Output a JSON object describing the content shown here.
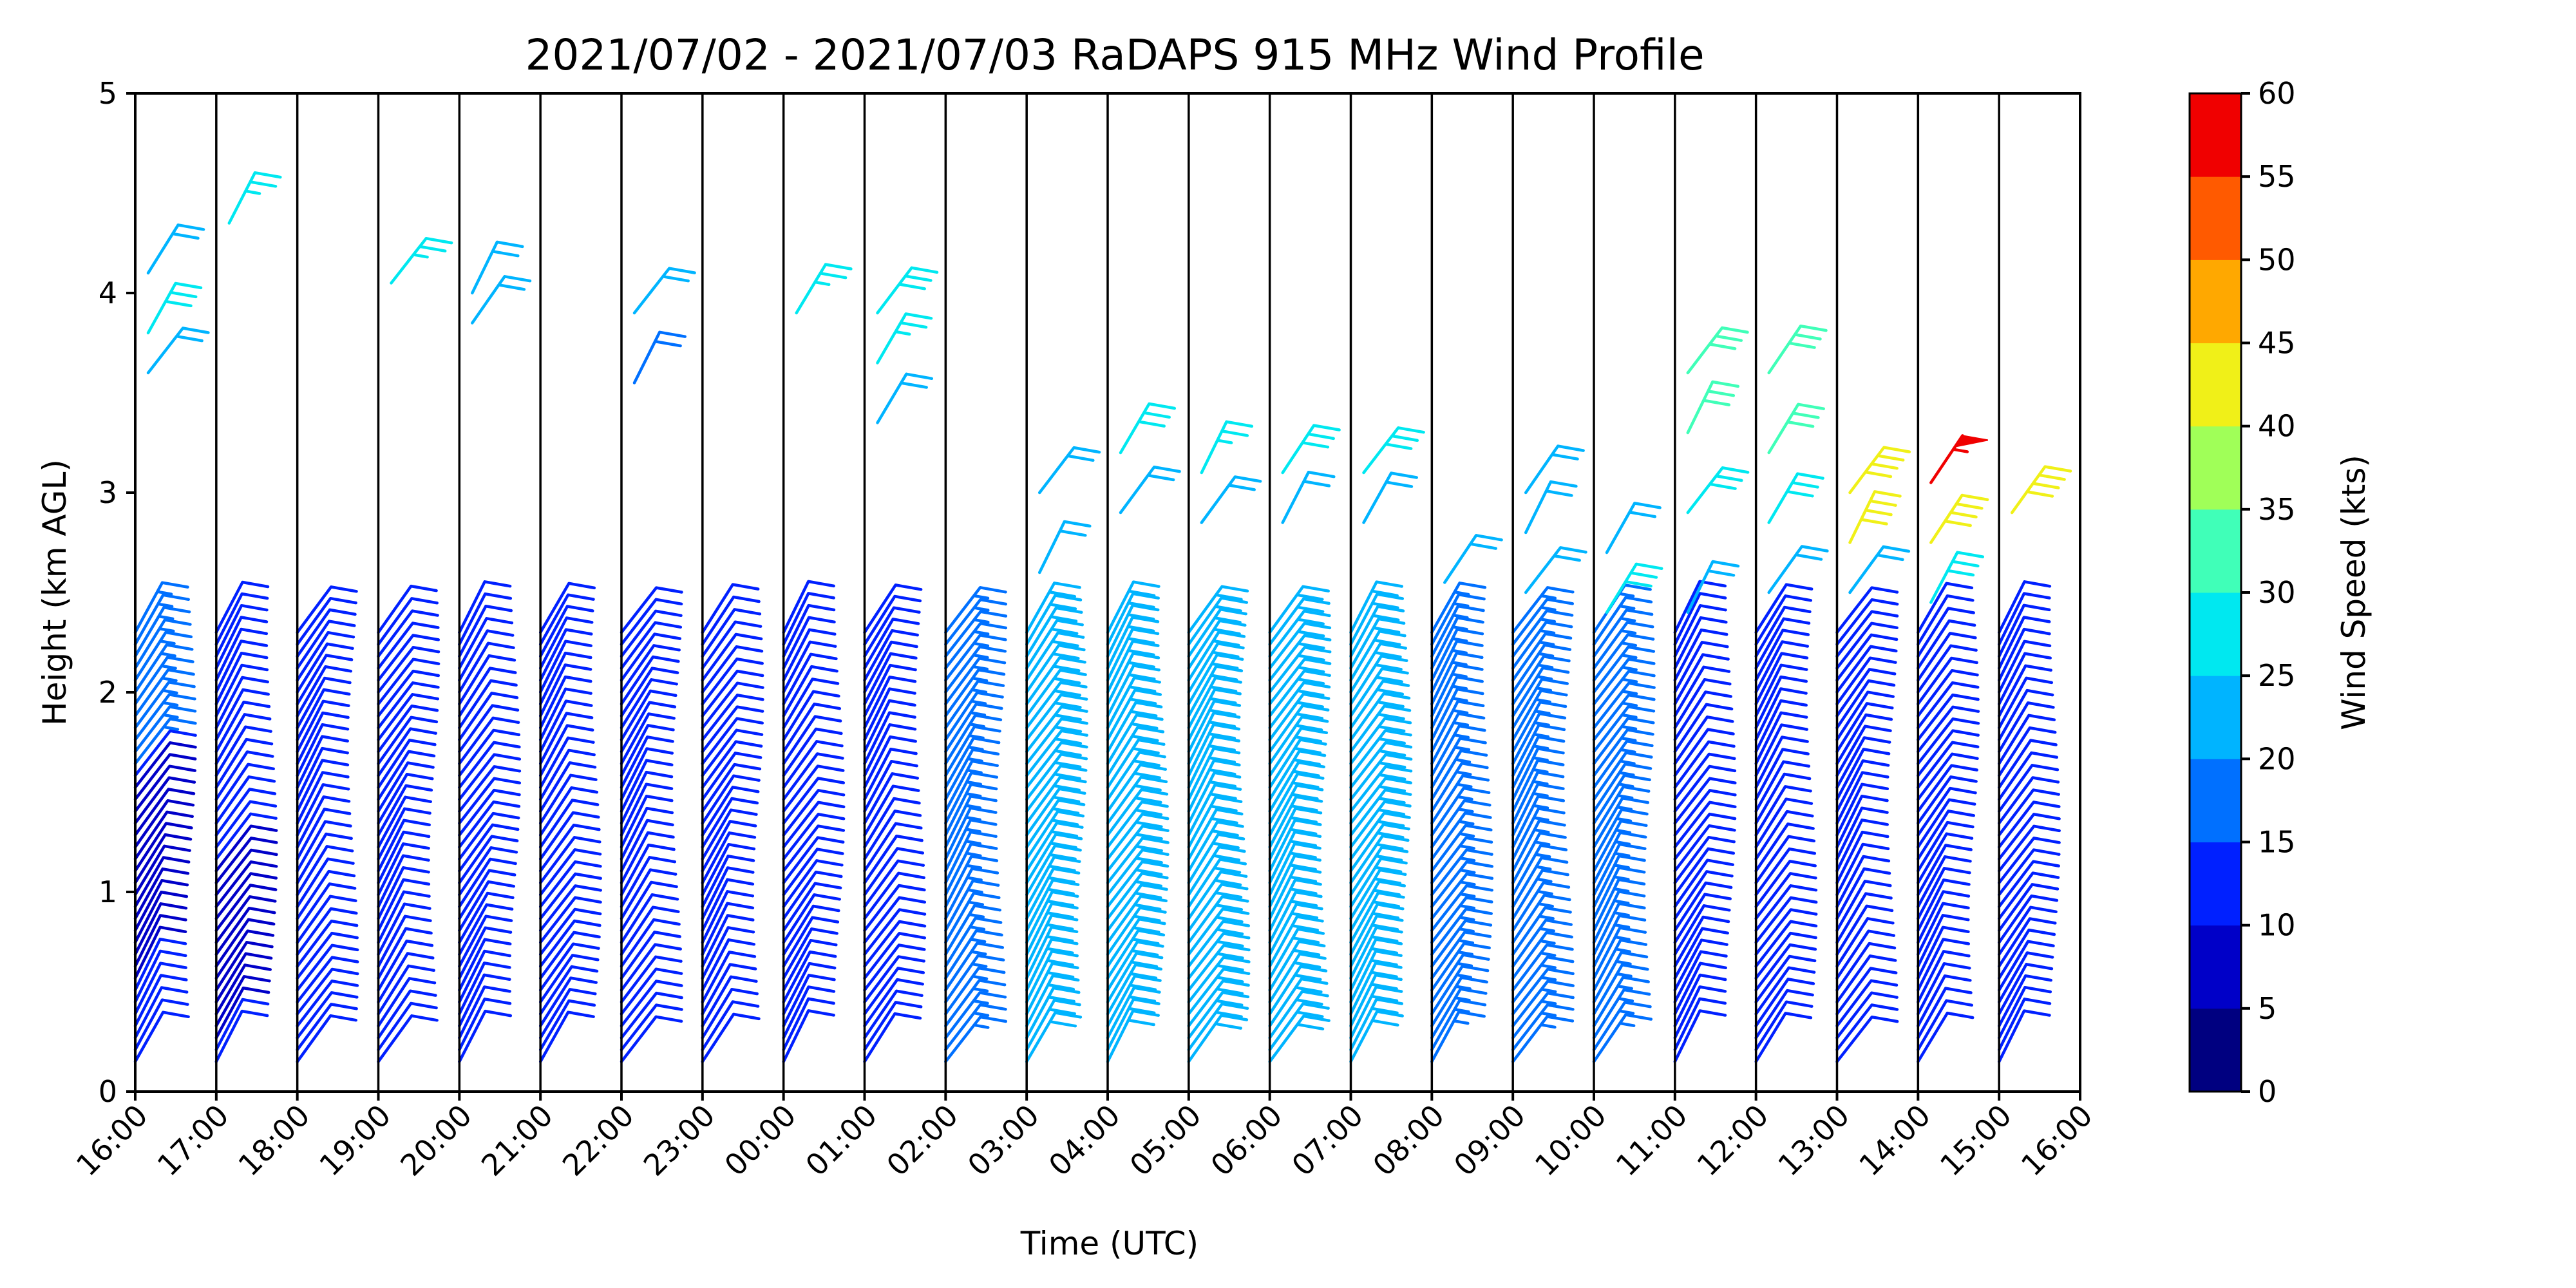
{
  "chart_data": {
    "type": "wind_barb_profile",
    "title": "2021/07/02 - 2021/07/03 RaDAPS 915 MHz Wind Profile",
    "xlabel": "Time (UTC)",
    "ylabel": "Height (km AGL)",
    "ylim": [
      0,
      5
    ],
    "yticks": [
      "0",
      "1",
      "2",
      "3",
      "4",
      "5"
    ],
    "xticks": [
      "16:00",
      "17:00",
      "18:00",
      "19:00",
      "20:00",
      "21:00",
      "22:00",
      "23:00",
      "00:00",
      "01:00",
      "02:00",
      "03:00",
      "04:00",
      "05:00",
      "06:00",
      "07:00",
      "08:00",
      "09:00",
      "10:00",
      "11:00",
      "12:00",
      "13:00",
      "14:00",
      "15:00",
      "16:00"
    ],
    "grid": "vertical lines at each hour",
    "colorbar": {
      "label": "Wind Speed (kts)",
      "ticks": [
        "0",
        "5",
        "10",
        "15",
        "20",
        "25",
        "30",
        "35",
        "40",
        "45",
        "50",
        "55",
        "60"
      ],
      "colors": [
        "#000080",
        "#0000c8",
        "#0020ff",
        "#0070ff",
        "#00b4ff",
        "#00e8f0",
        "#40ffb8",
        "#a0ff58",
        "#f0f018",
        "#ffa800",
        "#ff5a00",
        "#f00000",
        "#800000"
      ]
    },
    "profiles": [
      {
        "time": "16:00",
        "speeds": [
          10,
          10,
          10,
          10,
          10,
          10,
          10,
          8,
          8,
          8,
          8,
          8,
          8,
          8,
          8,
          8,
          8,
          8,
          8,
          8,
          8,
          8,
          8,
          8,
          12,
          15,
          15,
          15,
          15,
          15,
          15,
          15,
          15,
          15,
          15,
          15,
          15
        ]
      },
      {
        "time": "17:00",
        "speeds": [
          10,
          10,
          8,
          8,
          8,
          8,
          8,
          8,
          8,
          8,
          8,
          8,
          8,
          8,
          8,
          8,
          8,
          10,
          10,
          10,
          10,
          10,
          10,
          10,
          10,
          10,
          10,
          10,
          10,
          10,
          10,
          12,
          12,
          12,
          12,
          12,
          12
        ]
      },
      {
        "time": "18:00",
        "speeds": [
          10,
          10,
          10,
          10,
          10,
          10,
          10,
          10,
          10,
          10,
          10,
          10,
          10,
          10,
          10,
          10,
          10,
          10,
          10,
          10,
          10,
          10,
          10,
          10,
          10,
          10,
          12,
          12,
          12,
          12,
          12,
          12,
          12,
          12,
          12,
          12,
          12
        ]
      },
      {
        "time": "19:00",
        "speeds": [
          10,
          10,
          10,
          10,
          10,
          10,
          10,
          10,
          10,
          10,
          10,
          10,
          10,
          10,
          10,
          10,
          10,
          10,
          10,
          10,
          10,
          10,
          10,
          10,
          10,
          12,
          12,
          12,
          12,
          12,
          12,
          12,
          12,
          12,
          12,
          12,
          12
        ]
      },
      {
        "time": "20:00",
        "speeds": [
          12,
          12,
          12,
          12,
          12,
          12,
          12,
          12,
          12,
          12,
          12,
          12,
          12,
          12,
          12,
          12,
          12,
          12,
          12,
          12,
          12,
          12,
          12,
          12,
          12,
          12,
          12,
          12,
          12,
          12,
          12,
          12,
          12,
          12,
          12,
          12,
          12
        ]
      },
      {
        "time": "21:00",
        "speeds": [
          12,
          12,
          12,
          12,
          12,
          12,
          12,
          12,
          12,
          12,
          12,
          12,
          12,
          12,
          12,
          12,
          12,
          12,
          12,
          12,
          12,
          12,
          12,
          12,
          12,
          12,
          12,
          12,
          12,
          12,
          12,
          12,
          12,
          12,
          12,
          12,
          12
        ]
      },
      {
        "time": "22:00",
        "speeds": [
          12,
          12,
          12,
          12,
          12,
          12,
          12,
          12,
          12,
          12,
          12,
          12,
          12,
          12,
          12,
          12,
          12,
          12,
          12,
          12,
          12,
          12,
          12,
          12,
          12,
          12,
          12,
          12,
          12,
          12,
          12,
          12,
          12,
          12,
          12,
          12,
          12
        ]
      },
      {
        "time": "23:00",
        "speeds": [
          12,
          12,
          12,
          12,
          12,
          12,
          12,
          12,
          12,
          12,
          12,
          12,
          12,
          12,
          12,
          12,
          12,
          12,
          12,
          12,
          12,
          12,
          12,
          12,
          12,
          12,
          12,
          12,
          12,
          12,
          12,
          12,
          12,
          12,
          12,
          12,
          12
        ]
      },
      {
        "time": "00:00",
        "speeds": [
          12,
          12,
          12,
          12,
          12,
          12,
          12,
          12,
          12,
          12,
          12,
          12,
          12,
          12,
          12,
          12,
          12,
          12,
          12,
          12,
          12,
          12,
          12,
          12,
          12,
          12,
          12,
          12,
          12,
          12,
          12,
          12,
          12,
          12,
          12,
          12,
          12
        ]
      },
      {
        "time": "01:00",
        "speeds": [
          12,
          12,
          12,
          12,
          12,
          12,
          12,
          12,
          12,
          12,
          12,
          12,
          12,
          12,
          12,
          12,
          12,
          12,
          12,
          12,
          12,
          12,
          12,
          12,
          12,
          12,
          12,
          12,
          12,
          12,
          12,
          12,
          12,
          12,
          12,
          12,
          12
        ]
      },
      {
        "time": "02:00",
        "speeds": [
          17,
          17,
          17,
          17,
          17,
          17,
          17,
          17,
          17,
          17,
          17,
          17,
          17,
          17,
          17,
          17,
          17,
          17,
          17,
          17,
          17,
          17,
          17,
          17,
          17,
          17,
          17,
          17,
          17,
          17,
          17,
          17,
          17,
          17,
          17,
          17,
          17
        ]
      },
      {
        "time": "03:00",
        "speeds": [
          22,
          22,
          22,
          22,
          22,
          22,
          22,
          22,
          22,
          22,
          22,
          22,
          22,
          22,
          22,
          22,
          22,
          22,
          22,
          22,
          22,
          22,
          22,
          22,
          22,
          22,
          22,
          22,
          22,
          22,
          22,
          22,
          22,
          22,
          22,
          22,
          22
        ]
      },
      {
        "time": "04:00",
        "speeds": [
          22,
          22,
          22,
          22,
          22,
          22,
          22,
          22,
          22,
          22,
          22,
          22,
          22,
          22,
          22,
          22,
          22,
          22,
          22,
          22,
          22,
          22,
          22,
          22,
          22,
          22,
          22,
          22,
          22,
          22,
          22,
          22,
          22,
          22,
          22,
          22,
          22
        ]
      },
      {
        "time": "05:00",
        "speeds": [
          22,
          22,
          22,
          22,
          22,
          22,
          22,
          22,
          22,
          22,
          22,
          22,
          22,
          22,
          22,
          22,
          22,
          22,
          22,
          22,
          22,
          22,
          22,
          22,
          22,
          22,
          22,
          22,
          22,
          22,
          22,
          22,
          22,
          22,
          22,
          22,
          22
        ]
      },
      {
        "time": "06:00",
        "speeds": [
          22,
          22,
          22,
          22,
          22,
          22,
          22,
          22,
          22,
          22,
          22,
          22,
          22,
          22,
          22,
          22,
          22,
          22,
          22,
          22,
          22,
          22,
          22,
          22,
          22,
          22,
          22,
          22,
          22,
          22,
          22,
          22,
          22,
          22,
          22,
          22,
          22
        ]
      },
      {
        "time": "07:00",
        "speeds": [
          22,
          22,
          22,
          22,
          22,
          22,
          22,
          22,
          22,
          22,
          22,
          22,
          22,
          22,
          22,
          22,
          22,
          22,
          22,
          22,
          22,
          22,
          22,
          22,
          22,
          22,
          22,
          22,
          22,
          22,
          22,
          22,
          22,
          22,
          22,
          22,
          22
        ]
      },
      {
        "time": "08:00",
        "speeds": [
          17,
          17,
          17,
          17,
          17,
          17,
          17,
          17,
          17,
          17,
          17,
          17,
          17,
          17,
          17,
          17,
          17,
          17,
          17,
          17,
          17,
          17,
          17,
          17,
          17,
          17,
          17,
          17,
          17,
          17,
          17,
          17,
          17,
          17,
          17,
          17,
          17
        ]
      },
      {
        "time": "09:00",
        "speeds": [
          17,
          17,
          17,
          17,
          17,
          17,
          17,
          17,
          17,
          17,
          17,
          17,
          17,
          17,
          17,
          17,
          17,
          17,
          17,
          17,
          17,
          17,
          17,
          17,
          17,
          17,
          17,
          17,
          17,
          17,
          17,
          17,
          17,
          17,
          17,
          17,
          17
        ]
      },
      {
        "time": "10:00",
        "speeds": [
          17,
          17,
          17,
          17,
          17,
          17,
          17,
          17,
          17,
          17,
          17,
          17,
          17,
          17,
          17,
          17,
          17,
          17,
          17,
          17,
          17,
          17,
          17,
          17,
          17,
          17,
          17,
          17,
          17,
          17,
          17,
          17,
          17,
          17,
          17,
          17,
          17
        ]
      },
      {
        "time": "11:00",
        "speeds": [
          12,
          12,
          12,
          12,
          12,
          12,
          12,
          12,
          12,
          12,
          12,
          12,
          12,
          12,
          12,
          12,
          12,
          12,
          12,
          12,
          12,
          12,
          12,
          12,
          12,
          12,
          12,
          12,
          12,
          12,
          12,
          12,
          12,
          12,
          12,
          12,
          12
        ]
      },
      {
        "time": "12:00",
        "speeds": [
          12,
          12,
          12,
          12,
          12,
          12,
          12,
          12,
          12,
          12,
          12,
          12,
          12,
          12,
          12,
          12,
          12,
          12,
          12,
          12,
          12,
          12,
          12,
          12,
          12,
          12,
          12,
          12,
          12,
          12,
          12,
          12,
          12,
          12,
          12,
          12,
          12
        ]
      },
      {
        "time": "13:00",
        "speeds": [
          12,
          12,
          12,
          12,
          12,
          12,
          12,
          12,
          12,
          12,
          12,
          12,
          12,
          12,
          12,
          12,
          12,
          12,
          12,
          12,
          12,
          12,
          12,
          12,
          12,
          12,
          12,
          12,
          12,
          12,
          12,
          12,
          12,
          12,
          12,
          12,
          12
        ]
      },
      {
        "time": "14:00",
        "speeds": [
          12,
          12,
          12,
          12,
          12,
          12,
          12,
          12,
          12,
          12,
          12,
          12,
          12,
          12,
          12,
          12,
          12,
          12,
          12,
          12,
          12,
          12,
          12,
          12,
          12,
          12,
          12,
          12,
          12,
          12,
          12,
          12,
          12,
          12,
          12,
          12,
          12
        ]
      },
      {
        "time": "15:00",
        "speeds": [
          12,
          12,
          12,
          12,
          12,
          12,
          12,
          12,
          12,
          12,
          12,
          12,
          12,
          12,
          12,
          12,
          12,
          12,
          12,
          12,
          12,
          12,
          12,
          12,
          12,
          12,
          12,
          12,
          12,
          12,
          12,
          12,
          12,
          12,
          12,
          12,
          12
        ]
      }
    ],
    "upper_winds": [
      {
        "time": "16:00",
        "heights": [
          3.6,
          3.8,
          4.1
        ],
        "speeds": [
          22,
          28,
          20
        ]
      },
      {
        "time": "17:00",
        "heights": [
          4.35
        ],
        "speeds": [
          25
        ]
      },
      {
        "time": "19:00",
        "heights": [
          4.05
        ],
        "speeds": [
          25
        ]
      },
      {
        "time": "20:00",
        "heights": [
          3.85,
          4.0
        ],
        "speeds": [
          20,
          20
        ]
      },
      {
        "time": "22:00",
        "heights": [
          3.55,
          3.9
        ],
        "speeds": [
          18,
          20
        ]
      },
      {
        "time": "00:00",
        "heights": [
          3.9
        ],
        "speeds": [
          25
        ]
      },
      {
        "time": "01:00",
        "heights": [
          3.35,
          3.65,
          3.9
        ],
        "speeds": [
          20,
          25,
          28
        ]
      },
      {
        "time": "03:00",
        "heights": [
          2.6,
          3.0
        ],
        "speeds": [
          22,
          22
        ]
      },
      {
        "time": "04:00",
        "heights": [
          2.9,
          3.2
        ],
        "speeds": [
          20,
          28
        ]
      },
      {
        "time": "05:00",
        "heights": [
          2.85,
          3.1
        ],
        "speeds": [
          22,
          27
        ]
      },
      {
        "time": "06:00",
        "heights": [
          2.85,
          3.1
        ],
        "speeds": [
          22,
          28
        ]
      },
      {
        "time": "07:00",
        "heights": [
          2.85,
          3.1
        ],
        "speeds": [
          22,
          28
        ]
      },
      {
        "time": "08:00",
        "heights": [
          2.55
        ],
        "speeds": [
          20
        ]
      },
      {
        "time": "09:00",
        "heights": [
          2.5,
          2.8,
          3.0
        ],
        "speeds": [
          20,
          22,
          20
        ]
      },
      {
        "time": "10:00",
        "heights": [
          2.4,
          2.7
        ],
        "speeds": [
          28,
          22
        ]
      },
      {
        "time": "11:00",
        "heights": [
          2.4,
          2.9,
          3.3,
          3.6
        ],
        "speeds": [
          22,
          28,
          32,
          30
        ]
      },
      {
        "time": "12:00",
        "heights": [
          2.5,
          2.85,
          3.2,
          3.6
        ],
        "speeds": [
          22,
          28,
          30,
          30
        ]
      },
      {
        "time": "13:00",
        "heights": [
          2.5,
          2.75,
          3.0
        ],
        "speeds": [
          22,
          42,
          42
        ]
      },
      {
        "time": "14:00",
        "heights": [
          2.45,
          2.75,
          3.05
        ],
        "speeds": [
          28,
          42,
          55
        ]
      },
      {
        "time": "15:00",
        "heights": [
          2.9
        ],
        "speeds": [
          42
        ]
      }
    ]
  }
}
